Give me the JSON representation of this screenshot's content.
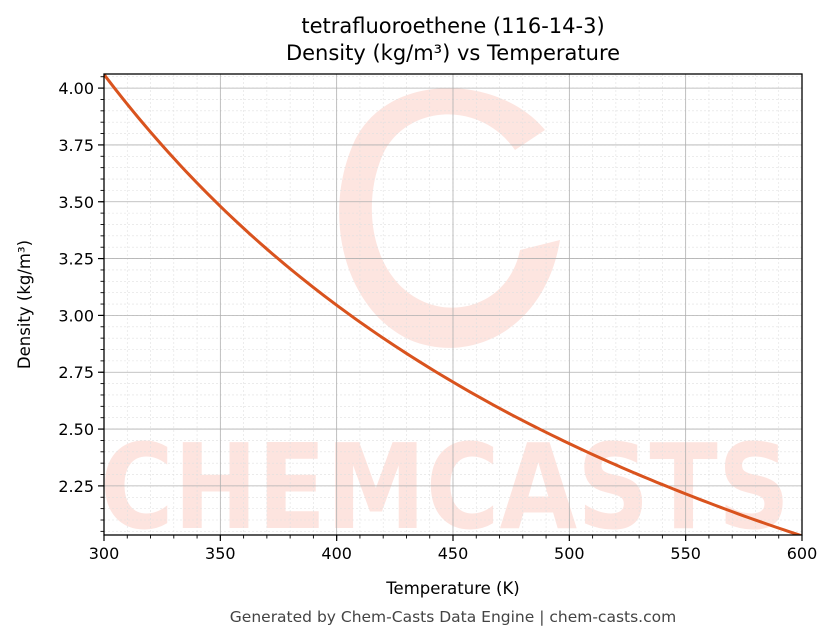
{
  "header": {
    "title_line1": "tetrafluoroethene (116-14-3)",
    "title_line2": "Density (kg/m³) vs Temperature"
  },
  "footer": {
    "text": "Generated by Chem-Casts Data Engine | chem-casts.com"
  },
  "watermark": {
    "text": "CHEMCASTS",
    "color": "#fde0da"
  },
  "colors": {
    "line": "#d9531e",
    "major_grid": "#b0b0b0",
    "minor_grid": "#e0e0e0",
    "axis": "#000000"
  },
  "chart_data": {
    "type": "line",
    "title": "tetrafluoroethene (116-14-3)\nDensity (kg/m³) vs Temperature",
    "xlabel": "Temperature (K)",
    "ylabel": "Density (kg/m³)",
    "xlim": [
      300,
      600
    ],
    "ylim": [
      2.034,
      4.062
    ],
    "xticks": [
      300,
      350,
      400,
      450,
      500,
      550,
      600
    ],
    "xtick_labels": [
      "300",
      "350",
      "400",
      "450",
      "500",
      "550",
      "600"
    ],
    "yticks": [
      2.25,
      2.5,
      2.75,
      3.0,
      3.25,
      3.5,
      3.75,
      4.0
    ],
    "ytick_labels": [
      "2.25",
      "2.50",
      "2.75",
      "3.00",
      "3.25",
      "3.50",
      "3.75",
      "4.00"
    ],
    "x_minor_step": 10,
    "y_minor_step": 0.05,
    "grid": true,
    "legend": null,
    "series": [
      {
        "name": "Density",
        "x": [
          300,
          325,
          350,
          375,
          400,
          425,
          450,
          475,
          500,
          525,
          550,
          575,
          600
        ],
        "values": [
          4.06,
          3.748,
          3.48,
          3.248,
          3.045,
          2.866,
          2.707,
          2.564,
          2.436,
          2.32,
          2.215,
          2.118,
          2.03
        ]
      }
    ]
  }
}
